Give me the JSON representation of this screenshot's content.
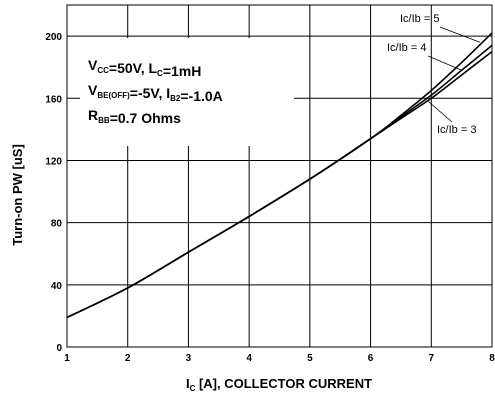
{
  "chart_data": {
    "type": "line",
    "title": "",
    "xlabel": {
      "main": "I",
      "sub": "C",
      "rest": " [A], COLLECTOR CURRENT"
    },
    "ylabel": "Turn-on PW [uS]",
    "xlim": [
      1,
      8
    ],
    "ylim": [
      0,
      220
    ],
    "xticks": [
      1,
      2,
      3,
      4,
      5,
      6,
      7,
      8
    ],
    "yticks": [
      0,
      40,
      80,
      120,
      160,
      200
    ],
    "grid": true,
    "conditions": {
      "line1": [
        {
          "t": "V"
        },
        {
          "t": "CC",
          "sub": true
        },
        {
          "t": "=50V, L"
        },
        {
          "t": "C",
          "sub": true
        },
        {
          "t": "=1mH"
        }
      ],
      "line2": [
        {
          "t": "V"
        },
        {
          "t": "BE(OFF)",
          "sub": true
        },
        {
          "t": "=-5V, I"
        },
        {
          "t": "B2",
          "sub": true
        },
        {
          "t": "=-1.0A"
        }
      ],
      "line3": [
        {
          "t": "R"
        },
        {
          "t": "BB",
          "sub": true
        },
        {
          "t": "=0.7 Ohms"
        }
      ]
    },
    "series": [
      {
        "name": "Ic/Ib = 5",
        "x": [
          1,
          2,
          3,
          4,
          5,
          6,
          6.5,
          7,
          7.5,
          8
        ],
        "y": [
          19,
          38,
          61,
          84,
          108,
          134,
          149,
          165,
          183,
          202
        ],
        "label_anchor": {
          "x": 7.8,
          "y": 196
        }
      },
      {
        "name": "Ic/Ib = 4",
        "x": [
          1,
          2,
          3,
          4,
          5,
          6,
          6.5,
          7,
          7.5,
          8
        ],
        "y": [
          19,
          38,
          61,
          84,
          108,
          134,
          148,
          162,
          178,
          194
        ],
        "label_anchor": {
          "x": 7.5,
          "y": 178
        }
      },
      {
        "name": "Ic/Ib = 3",
        "x": [
          1,
          2,
          3,
          4,
          5,
          6,
          6.5,
          7,
          7.5,
          8
        ],
        "y": [
          19,
          38,
          61,
          84,
          108,
          134,
          147,
          160,
          175,
          190
        ],
        "label_anchor": {
          "x": 6.95,
          "y": 158
        }
      }
    ]
  }
}
